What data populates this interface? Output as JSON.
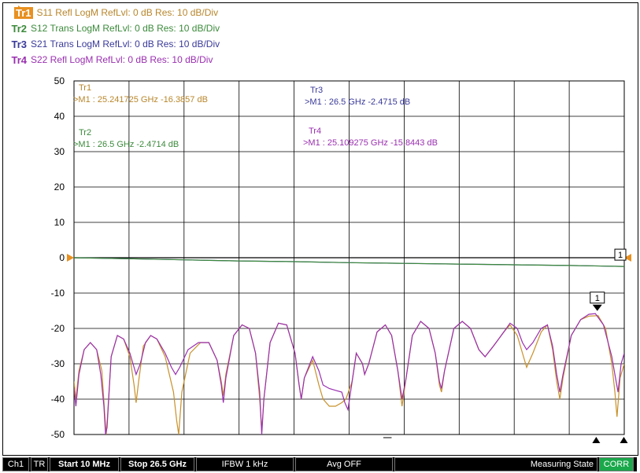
{
  "traces": [
    {
      "tag": "Tr1",
      "text": "S11 Refl LogM RefLvl: 0  dB Res: 10  dB/Div",
      "color": "#b8862b",
      "active": true
    },
    {
      "tag": "Tr2",
      "text": "S12 Trans LogM RefLvl: 0  dB Res: 10  dB/Div",
      "color": "#3c8a3c",
      "active": false
    },
    {
      "tag": "Tr3",
      "text": "S21 Trans LogM RefLvl: 0  dB Res: 10  dB/Div",
      "color": "#3a3a9a",
      "active": false
    },
    {
      "tag": "Tr4",
      "text": "S22 Refl LogM RefLvl: 0  dB Res: 10  dB/Div",
      "color": "#9a2fb0",
      "active": false
    }
  ],
  "chart_data": {
    "type": "line",
    "x_start_mhz": 10,
    "x_stop_mhz": 26500,
    "ylim": [
      -50,
      50
    ],
    "yticks": [
      "50",
      "40",
      "30",
      "20",
      "10",
      "0",
      "-10",
      "-20",
      "-30",
      "-40",
      "-50"
    ],
    "grid": true,
    "reference_level": 0,
    "marker_readouts": [
      {
        "trace": "Tr1",
        "text": ">M1 :  25.241725 GHz  -16.3857  dB",
        "color": "#b8862b"
      },
      {
        "trace": "Tr2",
        "text": ">M1 :  26.5 GHz  -2.4714  dB",
        "color": "#3c8a3c"
      },
      {
        "trace": "Tr3",
        "text": ">M1 :  26.5 GHz  -2.4715  dB",
        "color": "#3a3a9a"
      },
      {
        "trace": "Tr4",
        "text": ">M1 :  25.109275 GHz  -15.8443  dB",
        "color": "#9a2fb0"
      }
    ],
    "marker_labels": [
      "1",
      "1"
    ],
    "series": [
      {
        "name": "S21",
        "color": "#3a3a9a",
        "points": [
          [
            10,
            0
          ],
          [
            2650,
            -0.3
          ],
          [
            5300,
            -0.6
          ],
          [
            7950,
            -0.9
          ],
          [
            10600,
            -1.1
          ],
          [
            13250,
            -1.4
          ],
          [
            15900,
            -1.6
          ],
          [
            18550,
            -1.8
          ],
          [
            21200,
            -2.0
          ],
          [
            23850,
            -2.2
          ],
          [
            26500,
            -2.47
          ]
        ]
      },
      {
        "name": "S12",
        "color": "#3c8a3c",
        "points": [
          [
            10,
            0
          ],
          [
            2650,
            -0.3
          ],
          [
            5300,
            -0.6
          ],
          [
            7950,
            -0.9
          ],
          [
            10600,
            -1.1
          ],
          [
            13250,
            -1.4
          ],
          [
            15900,
            -1.6
          ],
          [
            18550,
            -1.8
          ],
          [
            21200,
            -2.0
          ],
          [
            23850,
            -2.2
          ],
          [
            26500,
            -2.47
          ]
        ]
      },
      {
        "name": "S11",
        "color": "#c8902a",
        "points": [
          [
            10,
            -35
          ],
          [
            100,
            -40
          ],
          [
            250,
            -32
          ],
          [
            500,
            -26
          ],
          [
            800,
            -24
          ],
          [
            1100,
            -26
          ],
          [
            1350,
            -32
          ],
          [
            1500,
            -45
          ],
          [
            1560,
            -50
          ],
          [
            1620,
            -45
          ],
          [
            1800,
            -28
          ],
          [
            2100,
            -22
          ],
          [
            2400,
            -23
          ],
          [
            2700,
            -28
          ],
          [
            2900,
            -36
          ],
          [
            3000,
            -41
          ],
          [
            3120,
            -35
          ],
          [
            3350,
            -25
          ],
          [
            3700,
            -22
          ],
          [
            4000,
            -23
          ],
          [
            4400,
            -28
          ],
          [
            4800,
            -38
          ],
          [
            4950,
            -46
          ],
          [
            5050,
            -50
          ],
          [
            5200,
            -38
          ],
          [
            5600,
            -27
          ],
          [
            6100,
            -24
          ],
          [
            6500,
            -24
          ],
          [
            6900,
            -29
          ],
          [
            7100,
            -35
          ],
          [
            7200,
            -39
          ],
          [
            7320,
            -33
          ],
          [
            7700,
            -22
          ],
          [
            8100,
            -19
          ],
          [
            8450,
            -20
          ],
          [
            8750,
            -27
          ],
          [
            8950,
            -40
          ],
          [
            9050,
            -49
          ],
          [
            9150,
            -40
          ],
          [
            9450,
            -24
          ],
          [
            9850,
            -18.5
          ],
          [
            10250,
            -19
          ],
          [
            10650,
            -27
          ],
          [
            10850,
            -36
          ],
          [
            10950,
            -40
          ],
          [
            11100,
            -34
          ],
          [
            11500,
            -29
          ],
          [
            11800,
            -36
          ],
          [
            12000,
            -40
          ],
          [
            12300,
            -42
          ],
          [
            12600,
            -42
          ],
          [
            12900,
            -41
          ],
          [
            13100,
            -40
          ],
          [
            13400,
            -35
          ],
          [
            13600,
            -27
          ],
          [
            13900,
            -30
          ],
          [
            14000,
            -33
          ],
          [
            14200,
            -30
          ],
          [
            14600,
            -21
          ],
          [
            15000,
            -19
          ],
          [
            15300,
            -22
          ],
          [
            15600,
            -32
          ],
          [
            15800,
            -42
          ],
          [
            16000,
            -34
          ],
          [
            16300,
            -22
          ],
          [
            16700,
            -18
          ],
          [
            17100,
            -20
          ],
          [
            17400,
            -27
          ],
          [
            17600,
            -36
          ],
          [
            17700,
            -38
          ],
          [
            17850,
            -32
          ],
          [
            18300,
            -20
          ],
          [
            18700,
            -18
          ],
          [
            19100,
            -20
          ],
          [
            19500,
            -26
          ],
          [
            19800,
            -28
          ],
          [
            20200,
            -25
          ],
          [
            20700,
            -21
          ],
          [
            21000,
            -19
          ],
          [
            21350,
            -22
          ],
          [
            21600,
            -27
          ],
          [
            21800,
            -31
          ],
          [
            22100,
            -27
          ],
          [
            22500,
            -21
          ],
          [
            22800,
            -19
          ],
          [
            23050,
            -26
          ],
          [
            23250,
            -35
          ],
          [
            23400,
            -40
          ],
          [
            23550,
            -34
          ],
          [
            23950,
            -22
          ],
          [
            24400,
            -17.5
          ],
          [
            24800,
            -16.5
          ],
          [
            25240,
            -16.4
          ],
          [
            25600,
            -20
          ],
          [
            25900,
            -30
          ],
          [
            26050,
            -38
          ],
          [
            26150,
            -45
          ],
          [
            26300,
            -34
          ],
          [
            26500,
            -30
          ]
        ]
      },
      {
        "name": "S22",
        "color": "#9a2fb0",
        "points": [
          [
            10,
            -37
          ],
          [
            100,
            -42
          ],
          [
            250,
            -33
          ],
          [
            500,
            -26
          ],
          [
            800,
            -24
          ],
          [
            1100,
            -26
          ],
          [
            1300,
            -33
          ],
          [
            1450,
            -42
          ],
          [
            1530,
            -50
          ],
          [
            1600,
            -48
          ],
          [
            1800,
            -28
          ],
          [
            2100,
            -22
          ],
          [
            2400,
            -23
          ],
          [
            2700,
            -27
          ],
          [
            2900,
            -31
          ],
          [
            3000,
            -33
          ],
          [
            3200,
            -30
          ],
          [
            3450,
            -24
          ],
          [
            3700,
            -22
          ],
          [
            4000,
            -23
          ],
          [
            4400,
            -27
          ],
          [
            4700,
            -31
          ],
          [
            4900,
            -33
          ],
          [
            5100,
            -31
          ],
          [
            5500,
            -26
          ],
          [
            6000,
            -24
          ],
          [
            6500,
            -24
          ],
          [
            6900,
            -29
          ],
          [
            7100,
            -36
          ],
          [
            7200,
            -41
          ],
          [
            7320,
            -34
          ],
          [
            7700,
            -22
          ],
          [
            8100,
            -19
          ],
          [
            8450,
            -20
          ],
          [
            8750,
            -27
          ],
          [
            8950,
            -38
          ],
          [
            9050,
            -50
          ],
          [
            9150,
            -40
          ],
          [
            9450,
            -24
          ],
          [
            9850,
            -18.5
          ],
          [
            10250,
            -19
          ],
          [
            10650,
            -27
          ],
          [
            10850,
            -36
          ],
          [
            10950,
            -40
          ],
          [
            11100,
            -34
          ],
          [
            11500,
            -28
          ],
          [
            11800,
            -32
          ],
          [
            12000,
            -36
          ],
          [
            12300,
            -37
          ],
          [
            12600,
            -37.5
          ],
          [
            12900,
            -38
          ],
          [
            13050,
            -41
          ],
          [
            13200,
            -43
          ],
          [
            13350,
            -37
          ],
          [
            13600,
            -27
          ],
          [
            13900,
            -30
          ],
          [
            14000,
            -33
          ],
          [
            14200,
            -30
          ],
          [
            14600,
            -21
          ],
          [
            15000,
            -19
          ],
          [
            15300,
            -22
          ],
          [
            15600,
            -32
          ],
          [
            15800,
            -40
          ],
          [
            16000,
            -34
          ],
          [
            16300,
            -22
          ],
          [
            16700,
            -18
          ],
          [
            17100,
            -20
          ],
          [
            17400,
            -27
          ],
          [
            17600,
            -35
          ],
          [
            17700,
            -37
          ],
          [
            17850,
            -32
          ],
          [
            18300,
            -20
          ],
          [
            18700,
            -18
          ],
          [
            19100,
            -20
          ],
          [
            19500,
            -26
          ],
          [
            19800,
            -28
          ],
          [
            20200,
            -25
          ],
          [
            20700,
            -21
          ],
          [
            21000,
            -18.5
          ],
          [
            21350,
            -20
          ],
          [
            21600,
            -24
          ],
          [
            21800,
            -26
          ],
          [
            22100,
            -24
          ],
          [
            22500,
            -20
          ],
          [
            22800,
            -19
          ],
          [
            23050,
            -25
          ],
          [
            23250,
            -33
          ],
          [
            23400,
            -38
          ],
          [
            23550,
            -33
          ],
          [
            23950,
            -22
          ],
          [
            24400,
            -17.5
          ],
          [
            24800,
            -16
          ],
          [
            25110,
            -15.8
          ],
          [
            25500,
            -19
          ],
          [
            25900,
            -28
          ],
          [
            26050,
            -33
          ],
          [
            26200,
            -38
          ],
          [
            26350,
            -30
          ],
          [
            26500,
            -27
          ]
        ]
      }
    ]
  },
  "status": {
    "channel": "Ch1",
    "tr": "TR",
    "start": "Start 10 MHz",
    "stop": "Stop 26.5 GHz",
    "ifbw": "IFBW 1 kHz",
    "avg": "Avg OFF",
    "state": "Measuring State",
    "corr": "CORR"
  }
}
